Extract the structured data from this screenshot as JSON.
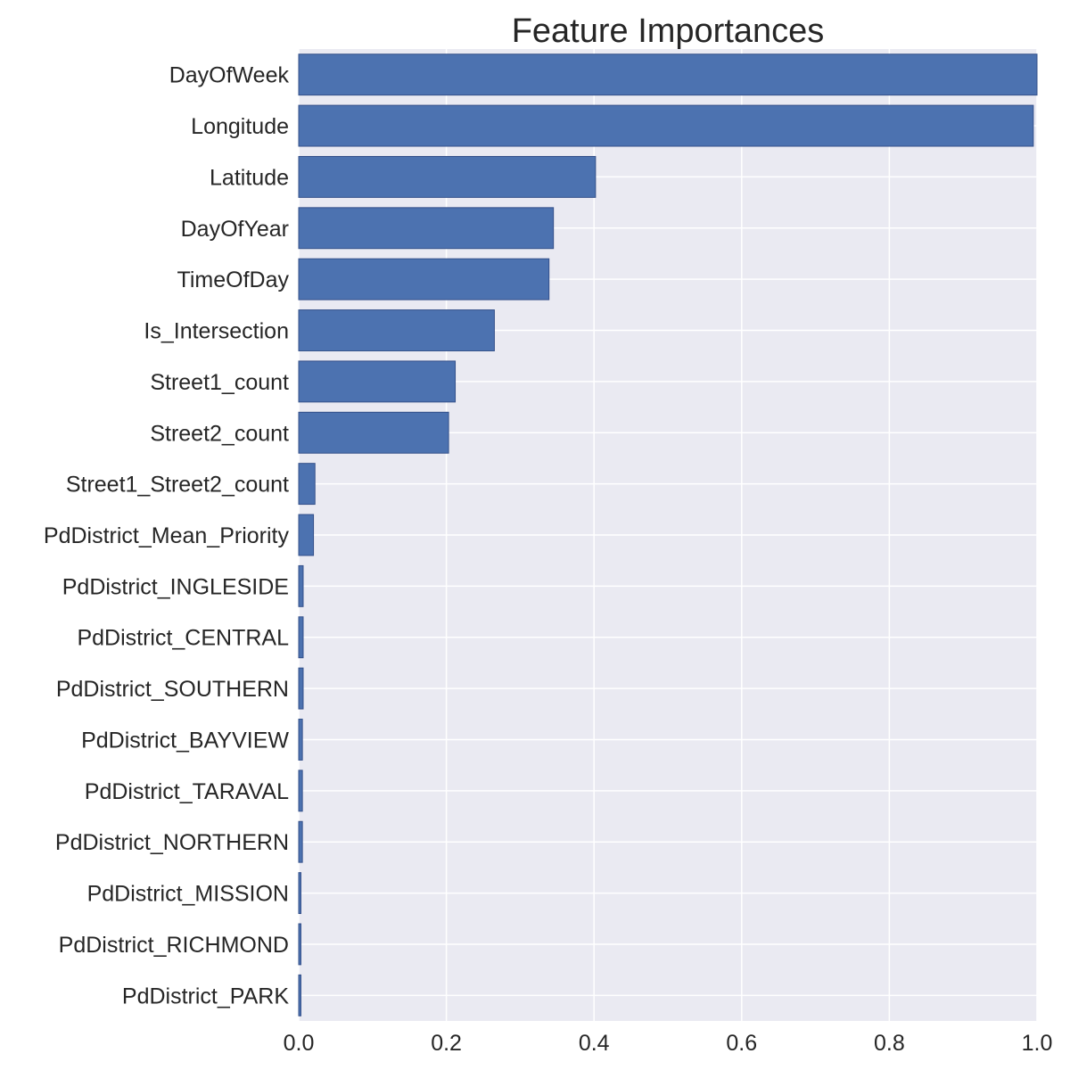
{
  "chart_data": {
    "type": "bar",
    "orientation": "horizontal",
    "title": "Feature Importances",
    "xlabel": "",
    "ylabel": "",
    "xlim": [
      0.0,
      1.0
    ],
    "grid": true,
    "legend": "none",
    "colors": {
      "bar": "#4c72b0",
      "bar_edge": "#34508a",
      "plot_background": "#eaeaf2",
      "grid": "#ffffff",
      "text": "#262626"
    },
    "x_ticks": [
      "0.0",
      "0.2",
      "0.4",
      "0.6",
      "0.8",
      "1.0"
    ],
    "categories": [
      "DayOfWeek",
      "Longitude",
      "Latitude",
      "DayOfYear",
      "TimeOfDay",
      "Is_Intersection",
      "Street1_count",
      "Street2_count",
      "Street1_Street2_count",
      "PdDistrict_Mean_Priority",
      "PdDistrict_INGLESIDE",
      "PdDistrict_CENTRAL",
      "PdDistrict_SOUTHERN",
      "PdDistrict_BAYVIEW",
      "PdDistrict_TARAVAL",
      "PdDistrict_NORTHERN",
      "PdDistrict_MISSION",
      "PdDistrict_RICHMOND",
      "PdDistrict_PARK"
    ],
    "values": [
      1.0,
      0.995,
      0.402,
      0.345,
      0.339,
      0.265,
      0.212,
      0.203,
      0.022,
      0.02,
      0.006,
      0.006,
      0.006,
      0.005,
      0.005,
      0.005,
      0.003,
      0.003,
      0.003
    ]
  }
}
